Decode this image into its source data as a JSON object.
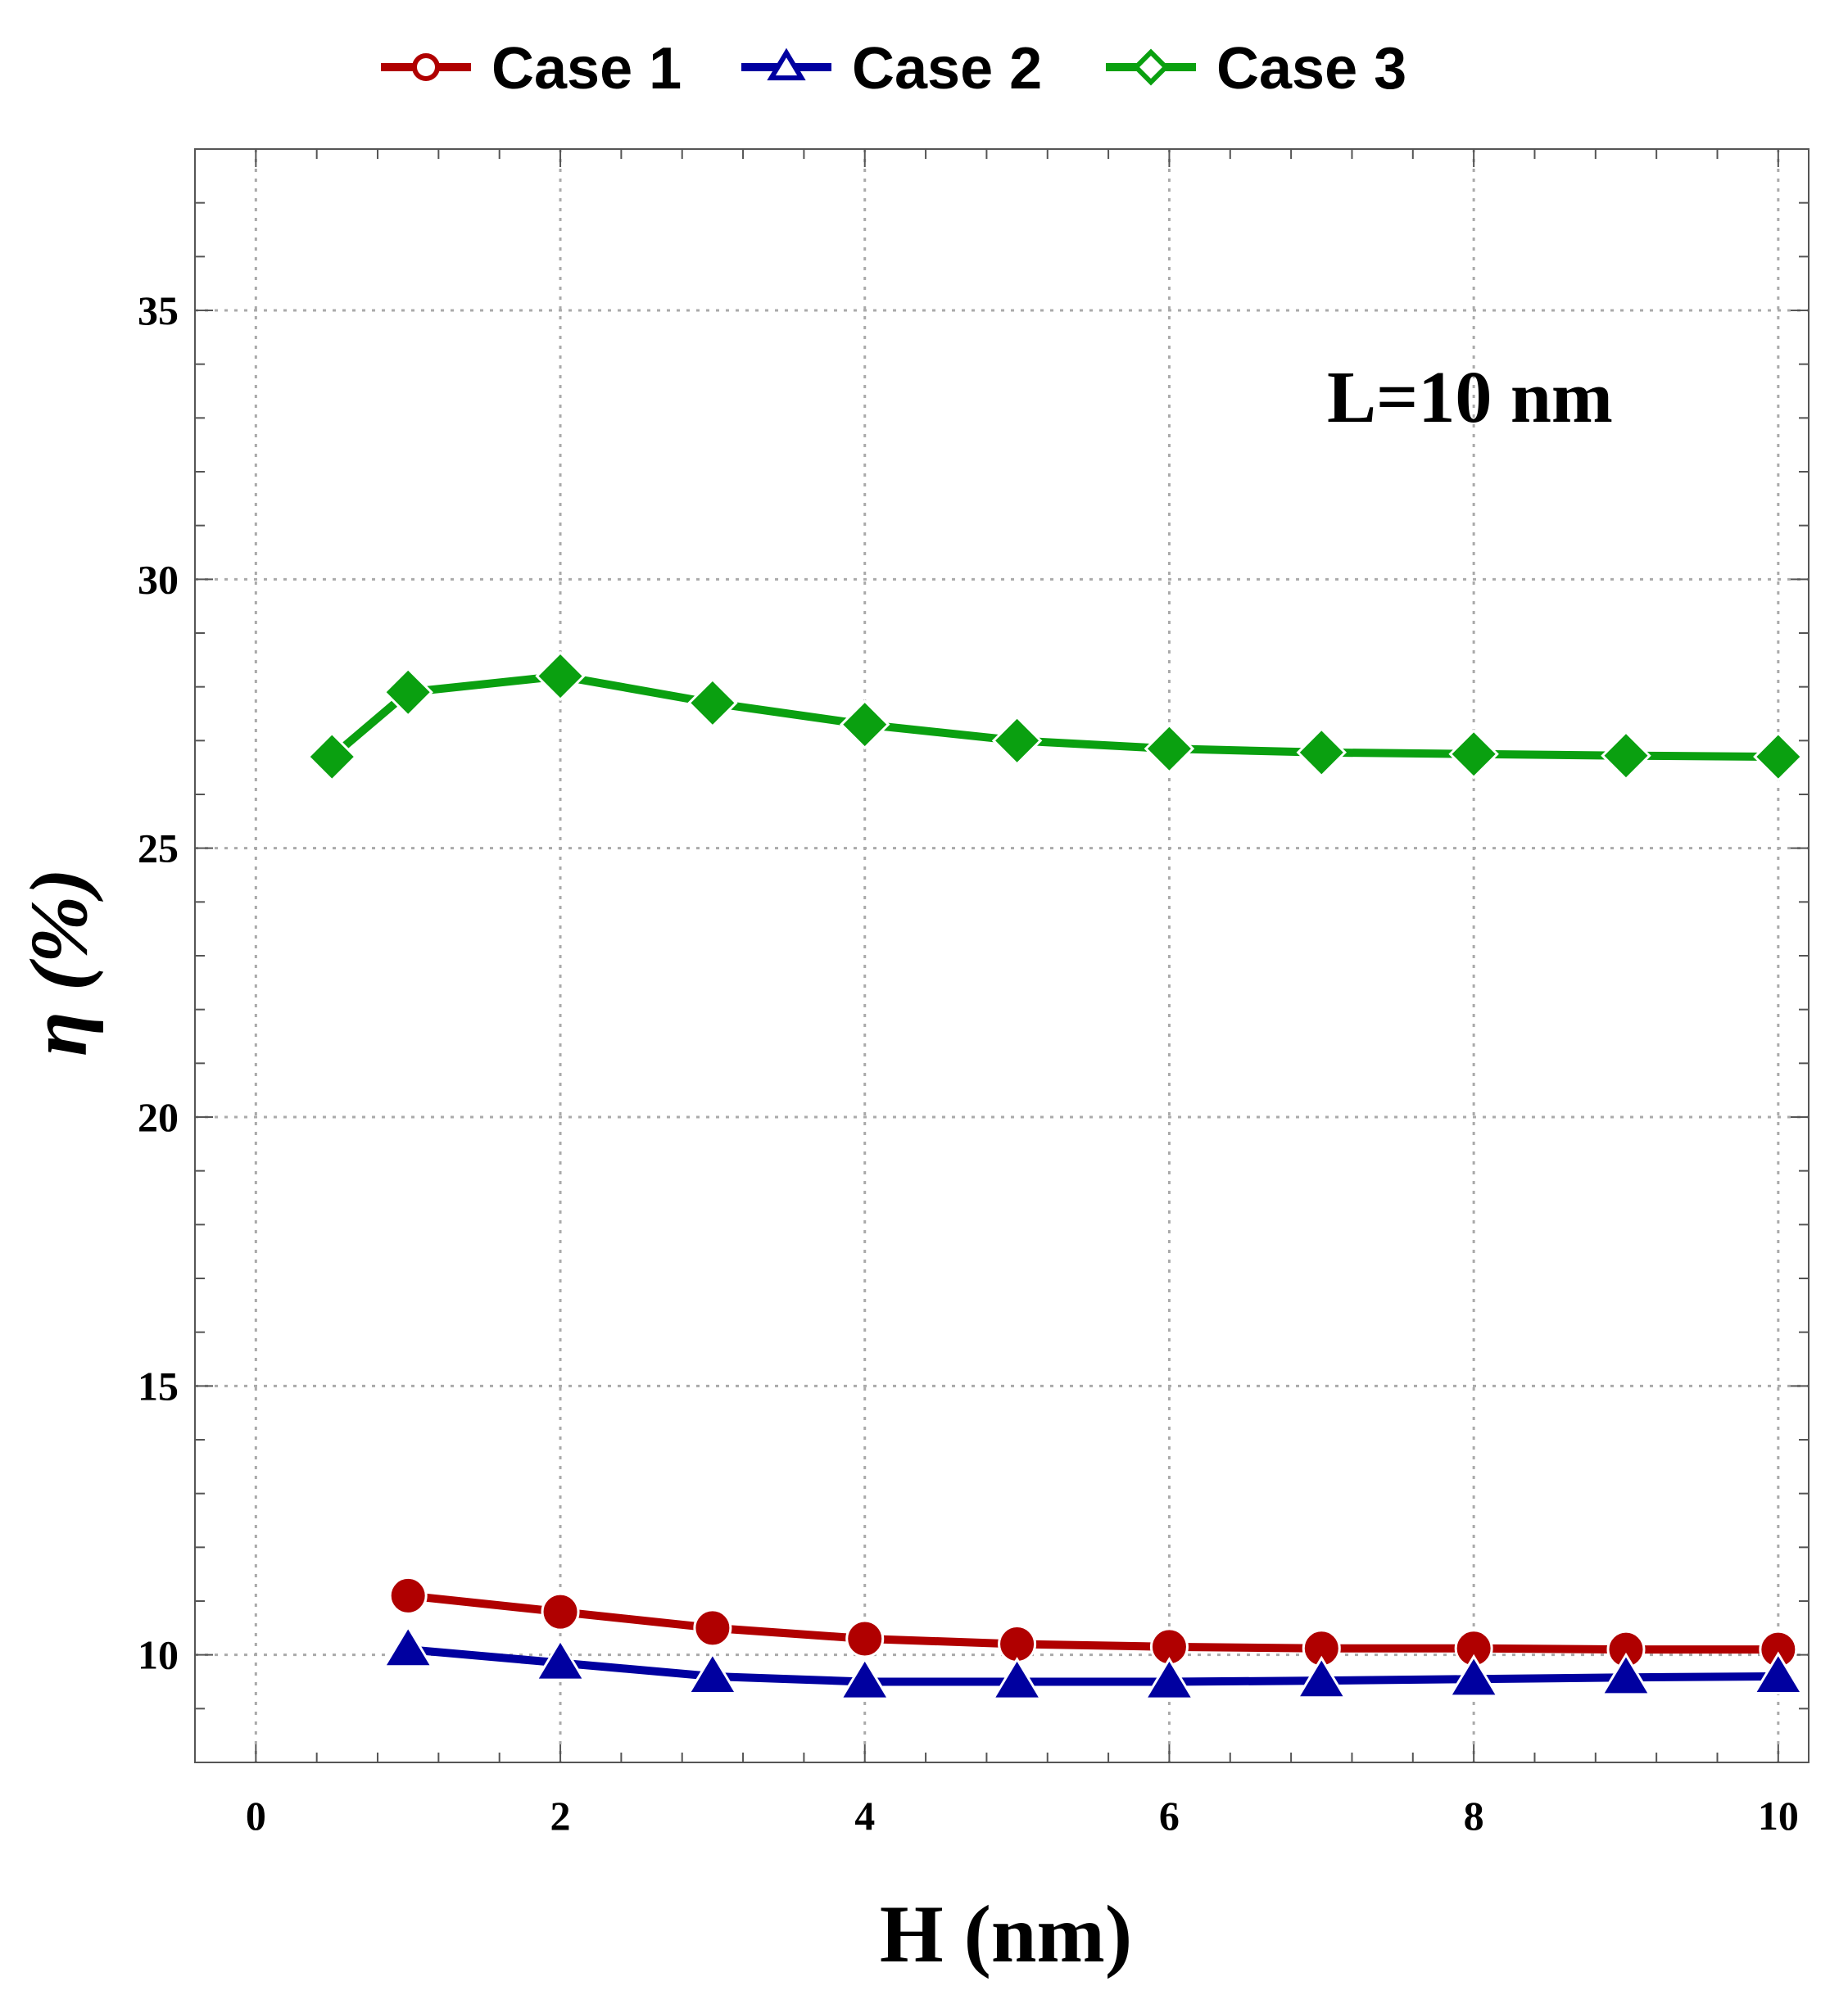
{
  "chart_data": {
    "type": "line",
    "xlabel": "H (nm)",
    "ylabel": "η (%)",
    "xlim": [
      -0.4,
      10.2
    ],
    "ylim": [
      8,
      38
    ],
    "x_ticks": [
      0,
      2,
      4,
      6,
      8,
      10
    ],
    "y_ticks": [
      10,
      15,
      20,
      25,
      30,
      35
    ],
    "grid": true,
    "legend_position": "top",
    "annotation": "L=10 nm",
    "series": [
      {
        "name": "Case 1",
        "color": "#b00000",
        "marker": "circle",
        "x": [
          1,
          2,
          3,
          4,
          5,
          6,
          7,
          8,
          9,
          10
        ],
        "y": [
          11.1,
          10.8,
          10.5,
          10.3,
          10.2,
          10.15,
          10.12,
          10.12,
          10.1,
          10.1
        ]
      },
      {
        "name": "Case 2",
        "color": "#0000a0",
        "marker": "triangle",
        "x": [
          1,
          2,
          3,
          4,
          5,
          6,
          7,
          8,
          9,
          10
        ],
        "y": [
          10.1,
          9.85,
          9.6,
          9.5,
          9.5,
          9.5,
          9.52,
          9.55,
          9.58,
          9.6
        ]
      },
      {
        "name": "Case 3",
        "color": "#0aa010",
        "marker": "diamond",
        "x": [
          0.5,
          1,
          2,
          3,
          4,
          5,
          6,
          7,
          8,
          9,
          10
        ],
        "y": [
          26.7,
          27.9,
          28.2,
          27.7,
          27.3,
          27.0,
          26.85,
          26.78,
          26.75,
          26.72,
          26.7
        ]
      }
    ]
  }
}
